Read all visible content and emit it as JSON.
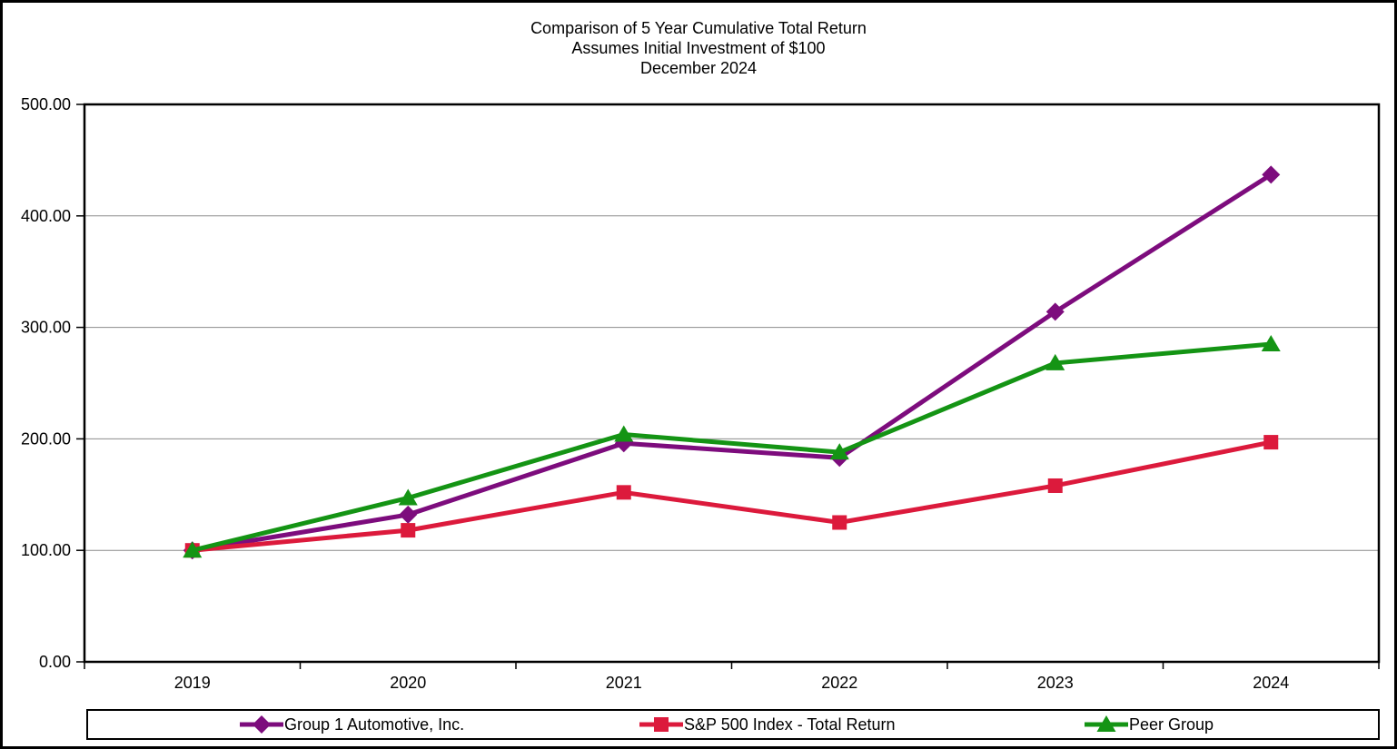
{
  "chart_data": {
    "type": "line",
    "title": "Comparison of 5 Year Cumulative Total Return",
    "subtitle": "Assumes Initial Investment of $100",
    "date_label": "December 2024",
    "xlabel": "",
    "ylabel": "",
    "x": [
      "2019",
      "2020",
      "2021",
      "2022",
      "2023",
      "2024"
    ],
    "series": [
      {
        "name": "Group 1 Automotive, Inc.",
        "marker": "diamond",
        "color": "#7D0C7D",
        "values": [
          100,
          132,
          196,
          183,
          314,
          437
        ]
      },
      {
        "name": "S&P 500 Index - Total Return",
        "marker": "square",
        "color": "#DC1A3C",
        "values": [
          100,
          118,
          152,
          125,
          158,
          197
        ]
      },
      {
        "name": "Peer Group",
        "marker": "triangle",
        "color": "#149414",
        "values": [
          100,
          147,
          204,
          188,
          268,
          285
        ]
      }
    ],
    "ylim": [
      0,
      500
    ],
    "ytick_step": 100,
    "ytick_labels": [
      "0.00",
      "100.00",
      "200.00",
      "300.00",
      "400.00",
      "500.00"
    ],
    "grid": true,
    "gridline_color": "#8C8C8C",
    "axis_color": "#000000",
    "legend_position": "bottom"
  }
}
